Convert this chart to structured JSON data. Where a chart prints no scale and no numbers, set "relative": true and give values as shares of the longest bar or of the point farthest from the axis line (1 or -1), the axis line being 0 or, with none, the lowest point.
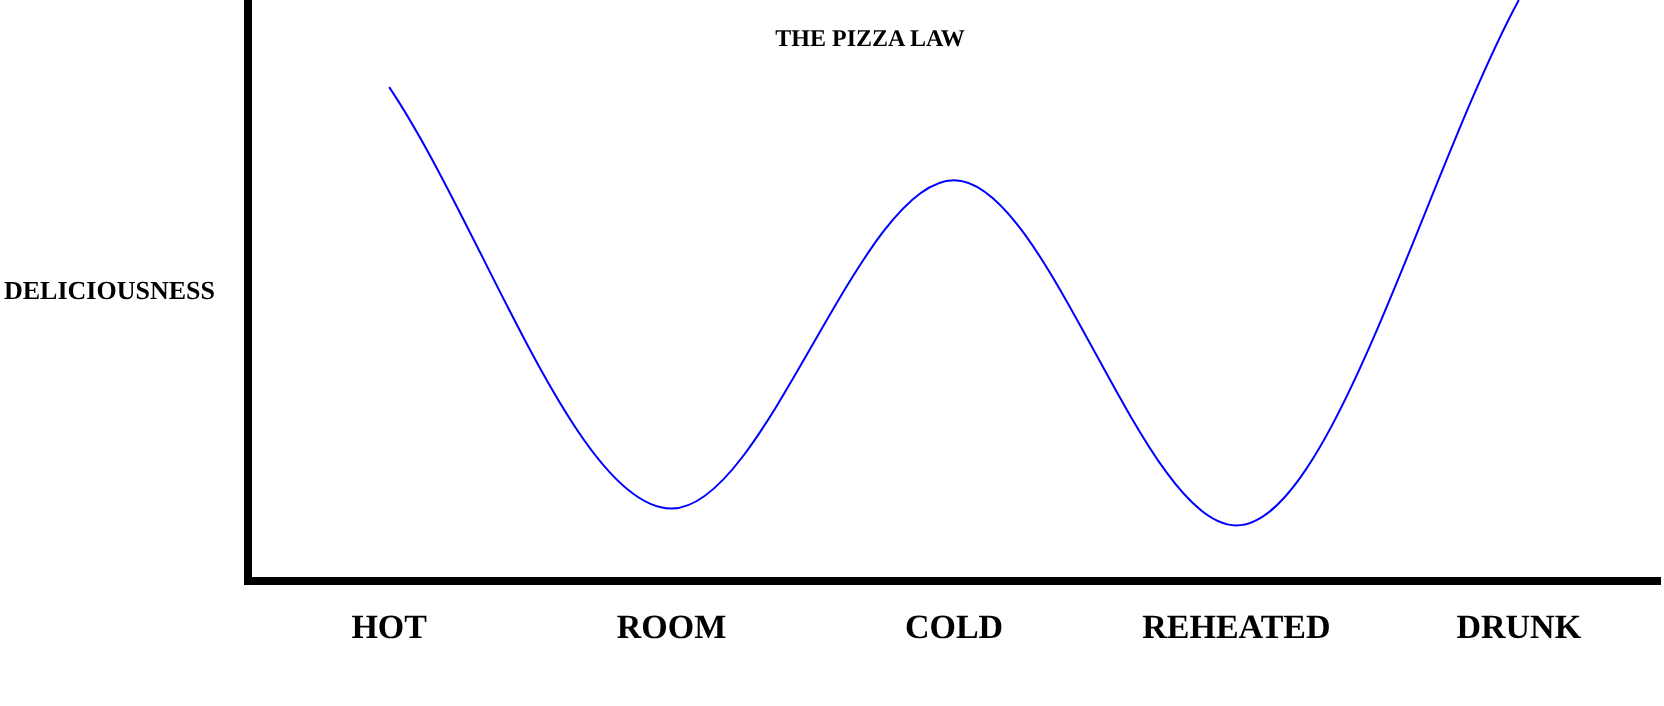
{
  "chart_data": {
    "type": "line",
    "title": "THE PIZZA LAW",
    "ylabel": "DELICIOUSNESS",
    "relative": true,
    "categories": [
      "HOT",
      "ROOM",
      "COLD",
      "REHEATED",
      "DRUNK"
    ],
    "series": [
      {
        "color": "#0000ff",
        "values": [
          0.85,
          0.125,
          0.69,
          0.096,
          1
        ]
      }
    ],
    "marker": "none",
    "line_style": "solid"
  }
}
